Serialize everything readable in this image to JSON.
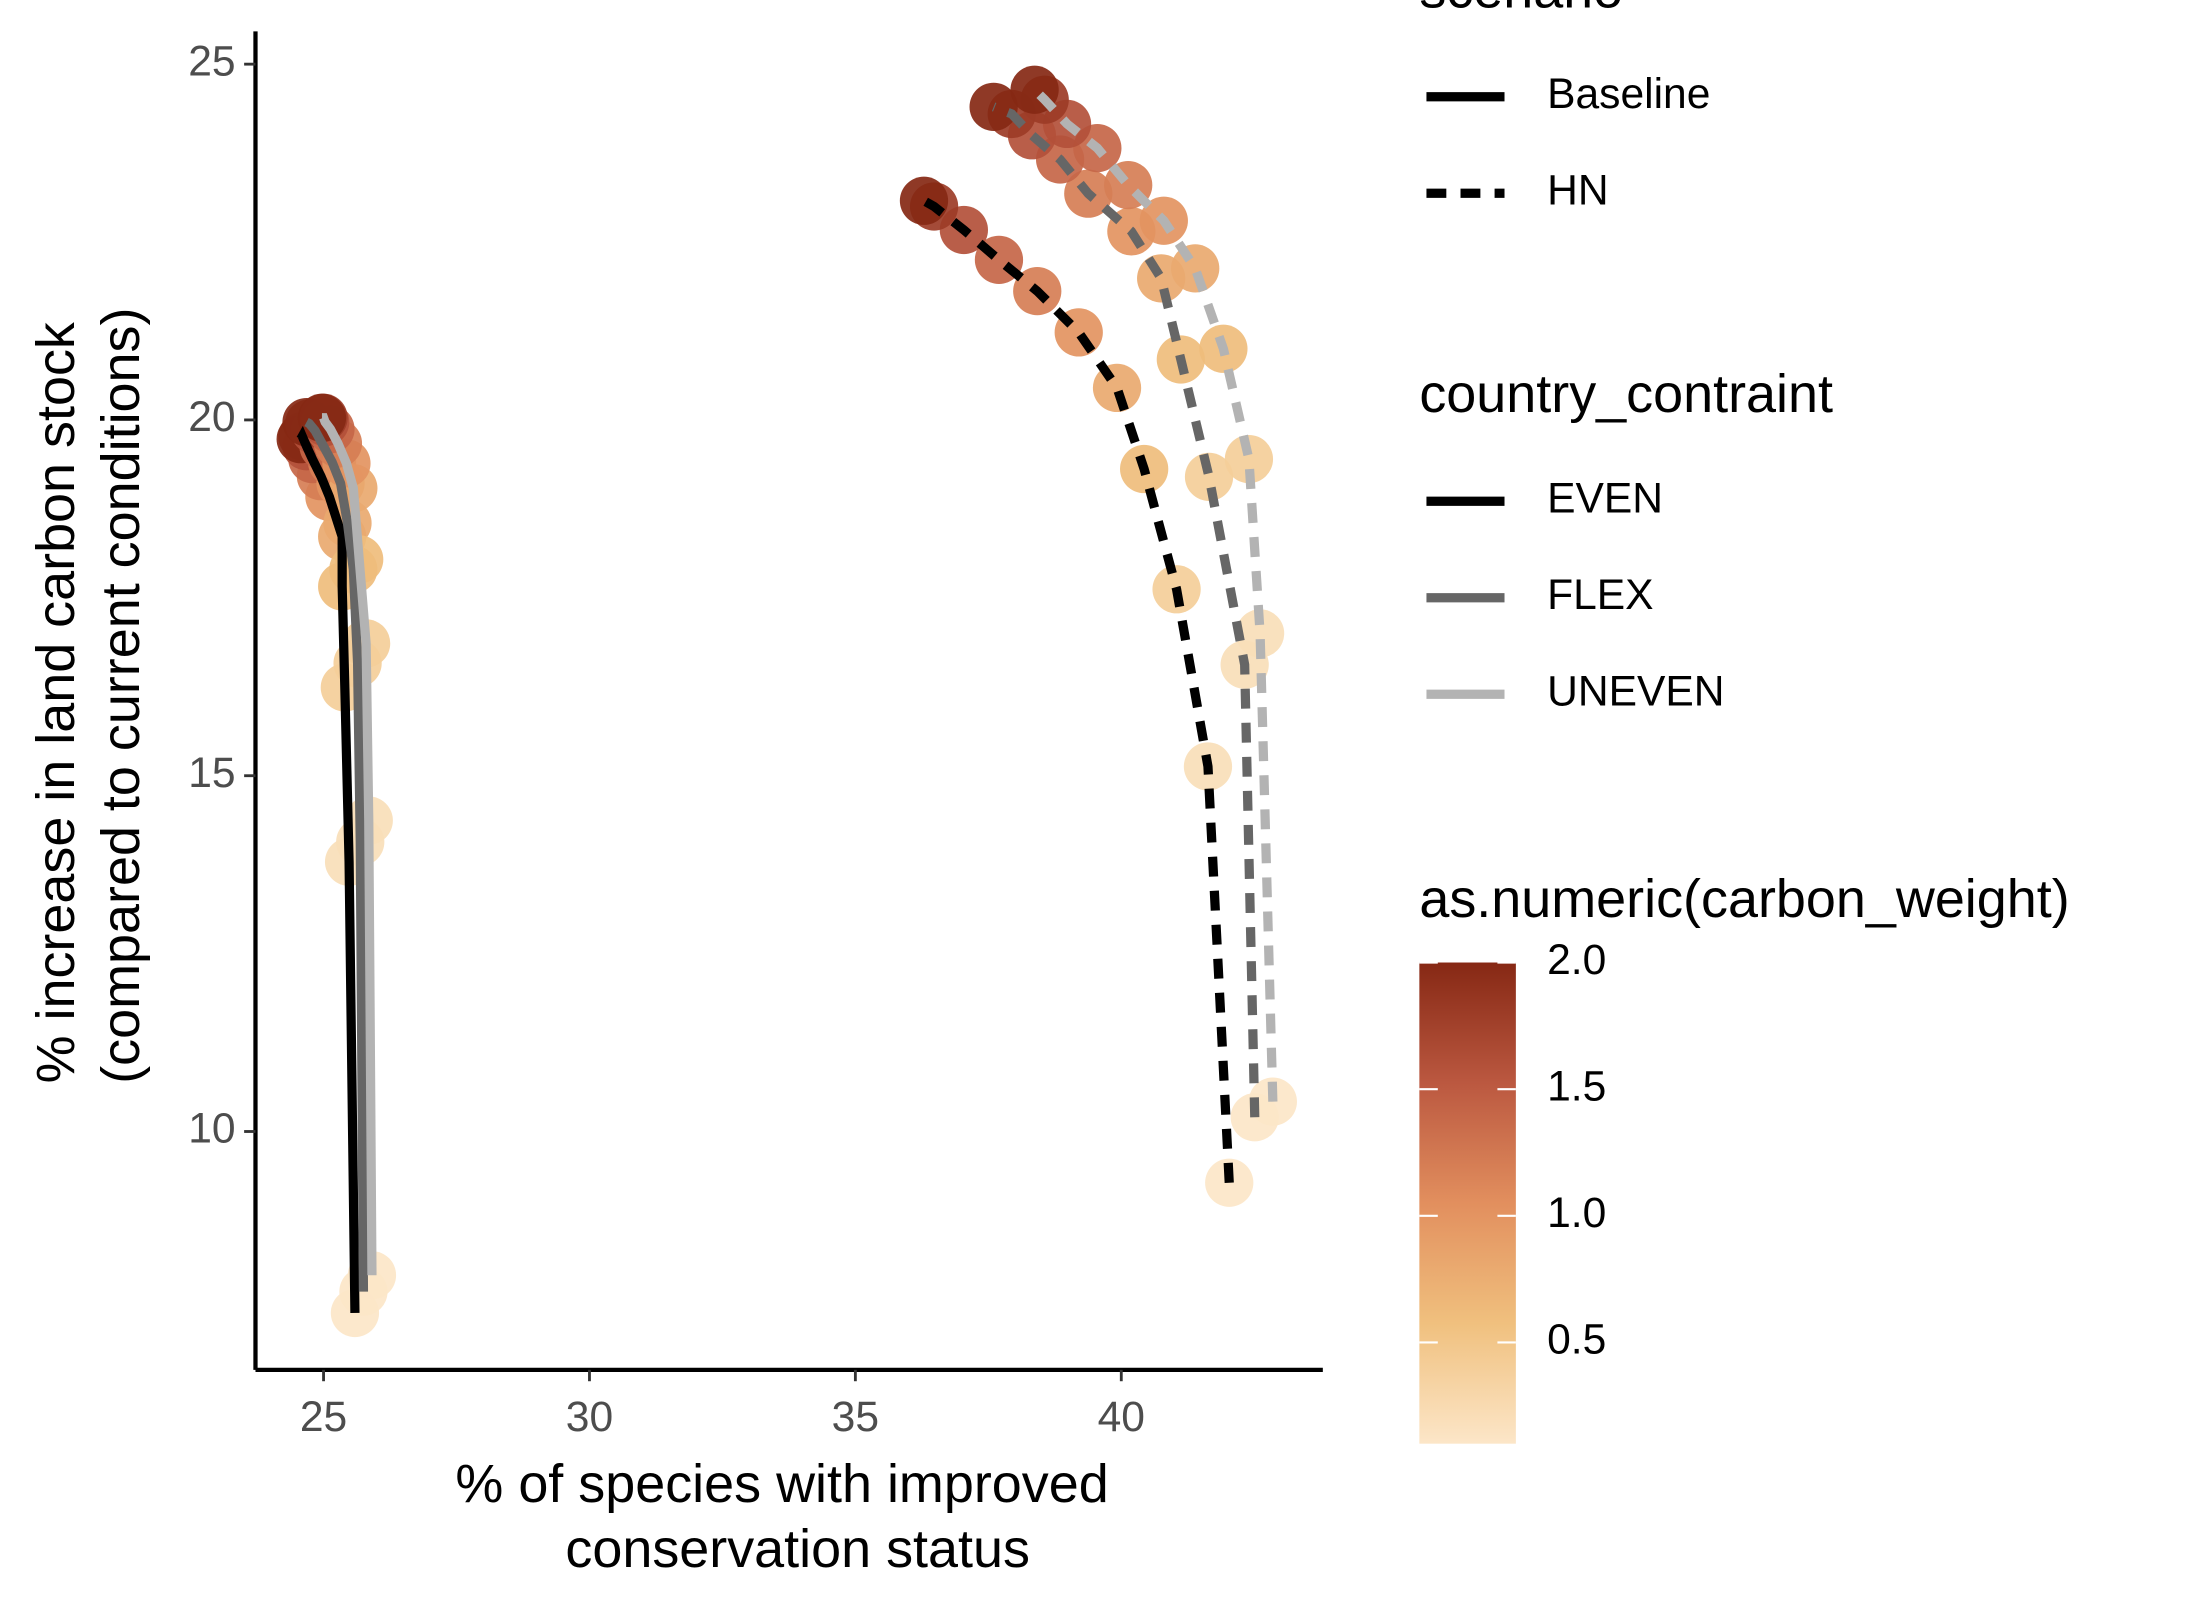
{
  "chart_data": {
    "type": "line",
    "xlabel": [
      "% of species with improved",
      "conservation status"
    ],
    "ylabel": [
      "% increase in land carbon stock",
      "(compared to current conditions)"
    ],
    "xlim": [
      23.72,
      43.79
    ],
    "ylim": [
      6.65,
      25.46
    ],
    "xticks": [
      25,
      30,
      35,
      40
    ],
    "yticks": [
      10,
      15,
      20,
      25
    ],
    "series": [
      {
        "dash": "solid",
        "color": "#000000",
        "x": [
          25.59,
          25.48,
          25.4,
          25.35,
          25.35,
          25.11,
          24.95,
          24.79,
          24.68,
          24.6,
          24.57
        ],
        "values": [
          7.45,
          13.79,
          16.24,
          17.66,
          18.36,
          18.92,
          19.21,
          19.45,
          19.63,
          19.77,
          19.73
        ],
        "carbon_weight": [
          0.1,
          0.2,
          0.4,
          0.6,
          0.8,
          1.0,
          1.2,
          1.4,
          1.6,
          1.8,
          2.0
        ]
      },
      {
        "dash": "solid",
        "color": "#666666",
        "x": [
          25.75,
          25.69,
          25.64,
          25.56,
          25.45,
          25.32,
          25.16,
          25.0,
          24.84,
          24.73,
          24.68
        ],
        "values": [
          7.75,
          14.07,
          16.58,
          17.9,
          18.55,
          19.11,
          19.41,
          19.63,
          19.85,
          19.95,
          19.97
        ],
        "carbon_weight": [
          0.1,
          0.2,
          0.4,
          0.6,
          0.8,
          1.0,
          1.2,
          1.4,
          1.6,
          1.8,
          2.0
        ]
      },
      {
        "dash": "solid",
        "color": "#b3b3b3",
        "x": [
          25.91,
          25.85,
          25.8,
          25.67,
          25.56,
          25.43,
          25.27,
          25.13,
          25.03,
          25.0,
          24.97
        ],
        "values": [
          7.98,
          14.37,
          16.86,
          18.04,
          19.04,
          19.39,
          19.67,
          19.87,
          19.97,
          20.03,
          20.03
        ],
        "carbon_weight": [
          0.1,
          0.2,
          0.4,
          0.6,
          0.8,
          1.0,
          1.2,
          1.4,
          1.6,
          1.8,
          2.0
        ]
      },
      {
        "dash": "dashed",
        "color": "#000000",
        "x": [
          42.03,
          41.63,
          41.04,
          40.43,
          39.92,
          39.2,
          38.42,
          37.7,
          37.04,
          36.48,
          36.29
        ],
        "values": [
          9.28,
          15.13,
          17.62,
          19.31,
          20.45,
          21.23,
          21.81,
          22.25,
          22.67,
          23.0,
          23.08
        ],
        "carbon_weight": [
          0.1,
          0.2,
          0.4,
          0.6,
          0.8,
          1.0,
          1.2,
          1.4,
          1.6,
          1.8,
          2.0
        ]
      },
      {
        "dash": "dashed",
        "color": "#666666",
        "x": [
          42.51,
          42.32,
          41.65,
          41.12,
          40.75,
          40.19,
          39.38,
          38.85,
          38.32,
          37.94,
          37.6
        ],
        "values": [
          10.2,
          16.56,
          19.2,
          20.85,
          21.99,
          22.65,
          23.18,
          23.66,
          24.0,
          24.3,
          24.4
        ],
        "carbon_weight": [
          0.1,
          0.2,
          0.4,
          0.6,
          0.8,
          1.0,
          1.2,
          1.4,
          1.6,
          1.8,
          2.0
        ]
      },
      {
        "dash": "dashed",
        "color": "#b3b3b3",
        "x": [
          42.85,
          42.61,
          42.4,
          41.92,
          41.39,
          40.8,
          40.13,
          39.55,
          38.98,
          38.56,
          38.37
        ],
        "values": [
          10.42,
          17.0,
          19.45,
          21.0,
          22.13,
          22.8,
          23.3,
          23.82,
          24.16,
          24.5,
          24.64
        ],
        "carbon_weight": [
          0.1,
          0.2,
          0.4,
          0.6,
          0.8,
          1.0,
          1.2,
          1.4,
          1.6,
          1.8,
          2.0
        ]
      }
    ],
    "legends": [
      {
        "title": "scenario",
        "entries": [
          {
            "label": "Baseline",
            "dash": "solid",
            "color": "#000000"
          },
          {
            "label": "HN",
            "dash": "dashed",
            "color": "#000000"
          }
        ]
      },
      {
        "title": "country_contraint",
        "entries": [
          {
            "label": "EVEN",
            "dash": "solid",
            "color": "#000000"
          },
          {
            "label": "FLEX",
            "dash": "solid",
            "color": "#666666"
          },
          {
            "label": "UNEVEN",
            "dash": "solid",
            "color": "#b3b3b3"
          }
        ]
      }
    ],
    "colorbar": {
      "title": "as.numeric(carbon_weight)",
      "lim": [
        0.1,
        2.0
      ],
      "colors": [
        "#fce6c8",
        "#f0c07e",
        "#e28f5e",
        "#bb5840",
        "#862814"
      ],
      "ticks": [
        0.5,
        {
          "value": 1.0,
          "label": "1.0"
        },
        1.5,
        {
          "value": 2.0,
          "label": "2.0"
        }
      ]
    }
  }
}
